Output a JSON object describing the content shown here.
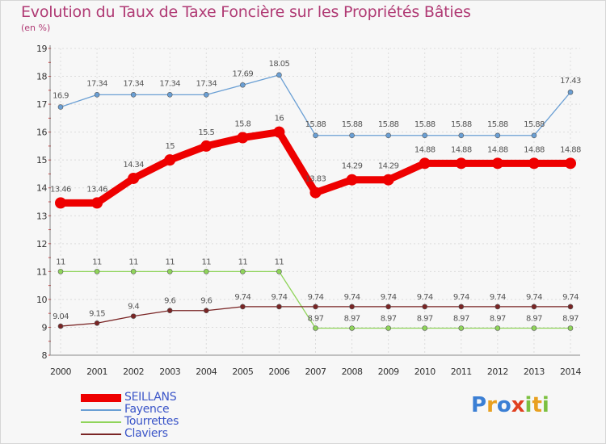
{
  "title": "Evolution du Taux de Taxe Foncière sur les Propriétés Bâties",
  "unit": "(en %)",
  "logo": {
    "text": "Proxiti",
    "letter_colors": [
      "#3b7fd4",
      "#e8a020",
      "#3b7fd4",
      "#e04020",
      "#7cc040",
      "#e8a020",
      "#7cc040"
    ]
  },
  "chart_data": {
    "type": "line",
    "title": "Evolution du Taux de Taxe Foncière sur les Propriétés Bâties",
    "ylabel": "(en %)",
    "xlabel": "",
    "ylim": [
      8,
      19
    ],
    "yticks": [
      "8",
      "9",
      "10",
      "11",
      "12",
      "13",
      "14",
      "15",
      "16",
      "17",
      "18",
      "19"
    ],
    "categories": [
      "2000",
      "2001",
      "2002",
      "2003",
      "2004",
      "2005",
      "2006",
      "2007",
      "2008",
      "2009",
      "2010",
      "2011",
      "2012",
      "2013",
      "2014"
    ],
    "grid": true,
    "legend_position": "bottom-left",
    "series": [
      {
        "name": "SEILLANS",
        "color": "#ee0000",
        "values": [
          13.46,
          13.46,
          14.34,
          15,
          15.5,
          15.8,
          16,
          13.83,
          14.29,
          14.29,
          14.88,
          14.88,
          14.88,
          14.88,
          14.88
        ],
        "labels": [
          "13.46",
          "13.46",
          "14.34",
          "15",
          "15.5",
          "15.8",
          "16",
          "13.83",
          "14.29",
          "14.29",
          "14.88",
          "14.88",
          "14.88",
          "14.88",
          "14.88"
        ]
      },
      {
        "name": "Fayence",
        "color": "#6a9fd4",
        "values": [
          16.9,
          17.34,
          17.34,
          17.34,
          17.34,
          17.69,
          18.05,
          15.88,
          15.88,
          15.88,
          15.88,
          15.88,
          15.88,
          15.88,
          17.43
        ],
        "labels": [
          "16.9",
          "17.34",
          "17.34",
          "17.34",
          "17.34",
          "17.69",
          "18.05",
          "15.88",
          "15.88",
          "15.88",
          "15.88",
          "15.88",
          "15.88",
          "15.88",
          "17.43"
        ]
      },
      {
        "name": "Tourrettes",
        "color": "#8fd45a",
        "values": [
          11,
          11,
          11,
          11,
          11,
          11,
          11,
          8.97,
          8.97,
          8.97,
          8.97,
          8.97,
          8.97,
          8.97,
          8.97
        ],
        "labels": [
          "11",
          "11",
          "11",
          "11",
          "11",
          "11",
          "11",
          "8.97",
          "8.97",
          "8.97",
          "8.97",
          "8.97",
          "8.97",
          "8.97",
          "8.97"
        ]
      },
      {
        "name": "Claviers",
        "color": "#7a2525",
        "values": [
          9.04,
          9.15,
          9.4,
          9.6,
          9.6,
          9.74,
          9.74,
          9.74,
          9.74,
          9.74,
          9.74,
          9.74,
          9.74,
          9.74,
          9.74
        ],
        "labels": [
          "9.04",
          "9.15",
          "9.4",
          "9.6",
          "9.6",
          "9.74",
          "9.74",
          "9.74",
          "9.74",
          "9.74",
          "9.74",
          "9.74",
          "9.74",
          "9.74",
          "9.74"
        ]
      }
    ]
  }
}
